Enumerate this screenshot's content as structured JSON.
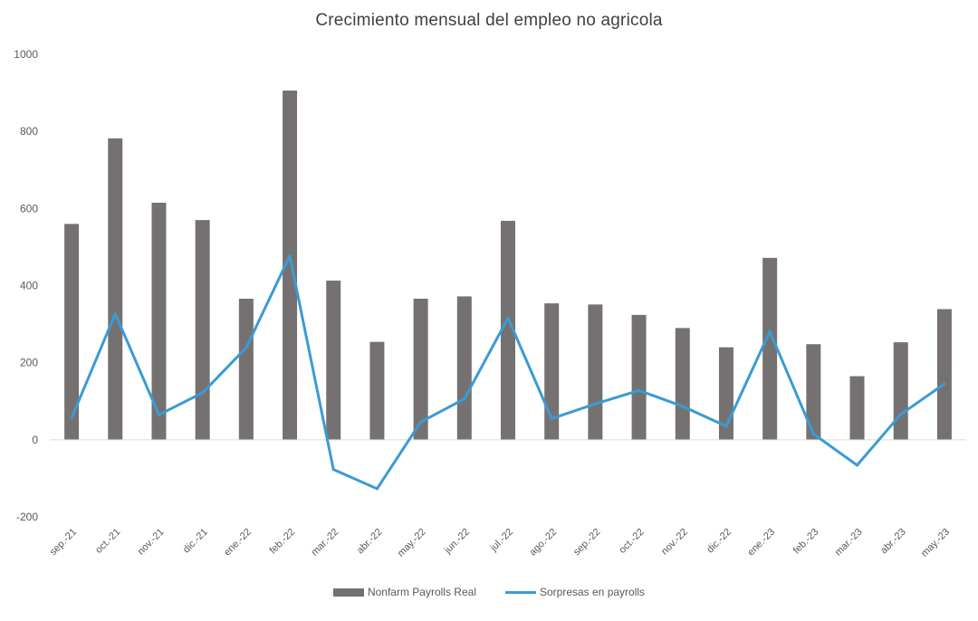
{
  "chart_data": {
    "type": "bar",
    "title": "Crecimiento mensual del empleo no agricola",
    "categories": [
      "sep.-21",
      "oct.-21",
      "nov.-21",
      "dic.-21",
      "ene.-22",
      "feb.-22",
      "mar.-22",
      "abr.-22",
      "may.-22",
      "jun.-22",
      "jul.-22",
      "ago.-22",
      "sep.-22",
      "oct.-22",
      "nov.-22",
      "dic.-22",
      "ene.-23",
      "feb.-23",
      "mar.-23",
      "abr.-23",
      "may.-23"
    ],
    "series": [
      {
        "name": "Nonfarm Payrolls Real",
        "type": "bar",
        "color": "#767171",
        "values": [
          560,
          782,
          615,
          570,
          366,
          906,
          413,
          254,
          366,
          372,
          568,
          354,
          351,
          324,
          290,
          240,
          472,
          248,
          165,
          253,
          339
        ]
      },
      {
        "name": "Sorpresas en payrolls",
        "type": "line",
        "color": "#3A9BD5",
        "values": [
          57,
          327,
          65,
          122,
          239,
          477,
          -77,
          -127,
          46,
          106,
          316,
          55,
          93,
          128,
          87,
          35,
          281,
          15,
          -66,
          66,
          145
        ]
      }
    ],
    "ylim": [
      -200,
      1000
    ],
    "yticks": [
      -200,
      0,
      200,
      400,
      600,
      800,
      1000
    ],
    "xlabel": "",
    "ylabel": "",
    "grid": false,
    "legend_position": "bottom"
  }
}
